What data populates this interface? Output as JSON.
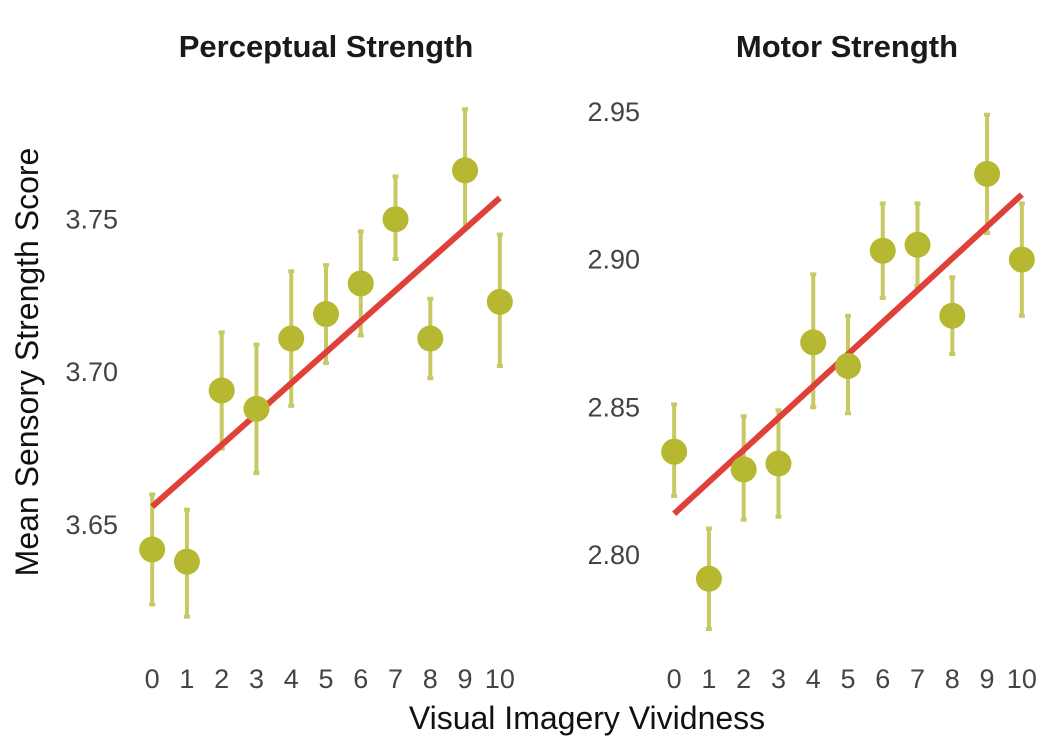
{
  "colors": {
    "point": "#b5b830",
    "errorbar": "#c7c965",
    "fit_line": "#e0403a",
    "text": "#1a1a1a",
    "tick_text": "#444444"
  },
  "figure": {
    "ylabel": "Mean Sensory Strength Score",
    "xlabel": "Visual Imagery Vividness"
  },
  "chart_data": [
    {
      "type": "scatter",
      "title": "Perceptual Strength",
      "x": [
        0,
        1,
        2,
        3,
        4,
        5,
        6,
        7,
        8,
        9,
        10
      ],
      "y": [
        3.642,
        3.638,
        3.694,
        3.688,
        3.711,
        3.719,
        3.729,
        3.75,
        3.711,
        3.766,
        3.723
      ],
      "error_low": [
        3.624,
        3.62,
        3.675,
        3.667,
        3.689,
        3.703,
        3.712,
        3.737,
        3.698,
        3.747,
        3.702
      ],
      "error_high": [
        3.66,
        3.655,
        3.713,
        3.709,
        3.733,
        3.735,
        3.746,
        3.764,
        3.724,
        3.786,
        3.745
      ],
      "fit_line": {
        "x": [
          0,
          10
        ],
        "y": [
          3.656,
          3.757
        ]
      },
      "xticks": [
        "0",
        "1",
        "2",
        "3",
        "4",
        "5",
        "6",
        "7",
        "8",
        "9",
        "10"
      ],
      "yticks": [
        3.65,
        3.7,
        3.75
      ],
      "ytick_labels": [
        "3.65",
        "3.70",
        "3.75"
      ],
      "xlim": [
        -0.35,
        10.35
      ],
      "ylim": [
        3.615,
        3.79
      ],
      "grid": false,
      "legend": "none"
    },
    {
      "type": "scatter",
      "title": "Motor Strength",
      "x": [
        0,
        1,
        2,
        3,
        4,
        5,
        6,
        7,
        8,
        9,
        10
      ],
      "y": [
        2.835,
        2.792,
        2.829,
        2.831,
        2.872,
        2.864,
        2.903,
        2.905,
        2.881,
        2.929,
        2.9
      ],
      "error_low": [
        2.82,
        2.775,
        2.812,
        2.813,
        2.85,
        2.848,
        2.887,
        2.891,
        2.868,
        2.909,
        2.881
      ],
      "error_high": [
        2.851,
        2.809,
        2.847,
        2.849,
        2.895,
        2.881,
        2.919,
        2.919,
        2.894,
        2.949,
        2.919
      ],
      "fit_line": {
        "x": [
          0,
          10
        ],
        "y": [
          2.814,
          2.922
        ]
      },
      "xticks": [
        "0",
        "1",
        "2",
        "3",
        "4",
        "5",
        "6",
        "7",
        "8",
        "9",
        "10"
      ],
      "yticks": [
        2.8,
        2.85,
        2.9,
        2.95
      ],
      "ytick_labels": [
        "2.80",
        "2.85",
        "2.90",
        "2.95"
      ],
      "xlim": [
        -0.35,
        10.35
      ],
      "ylim": [
        2.774,
        2.955
      ],
      "grid": false,
      "legend": "none"
    }
  ]
}
